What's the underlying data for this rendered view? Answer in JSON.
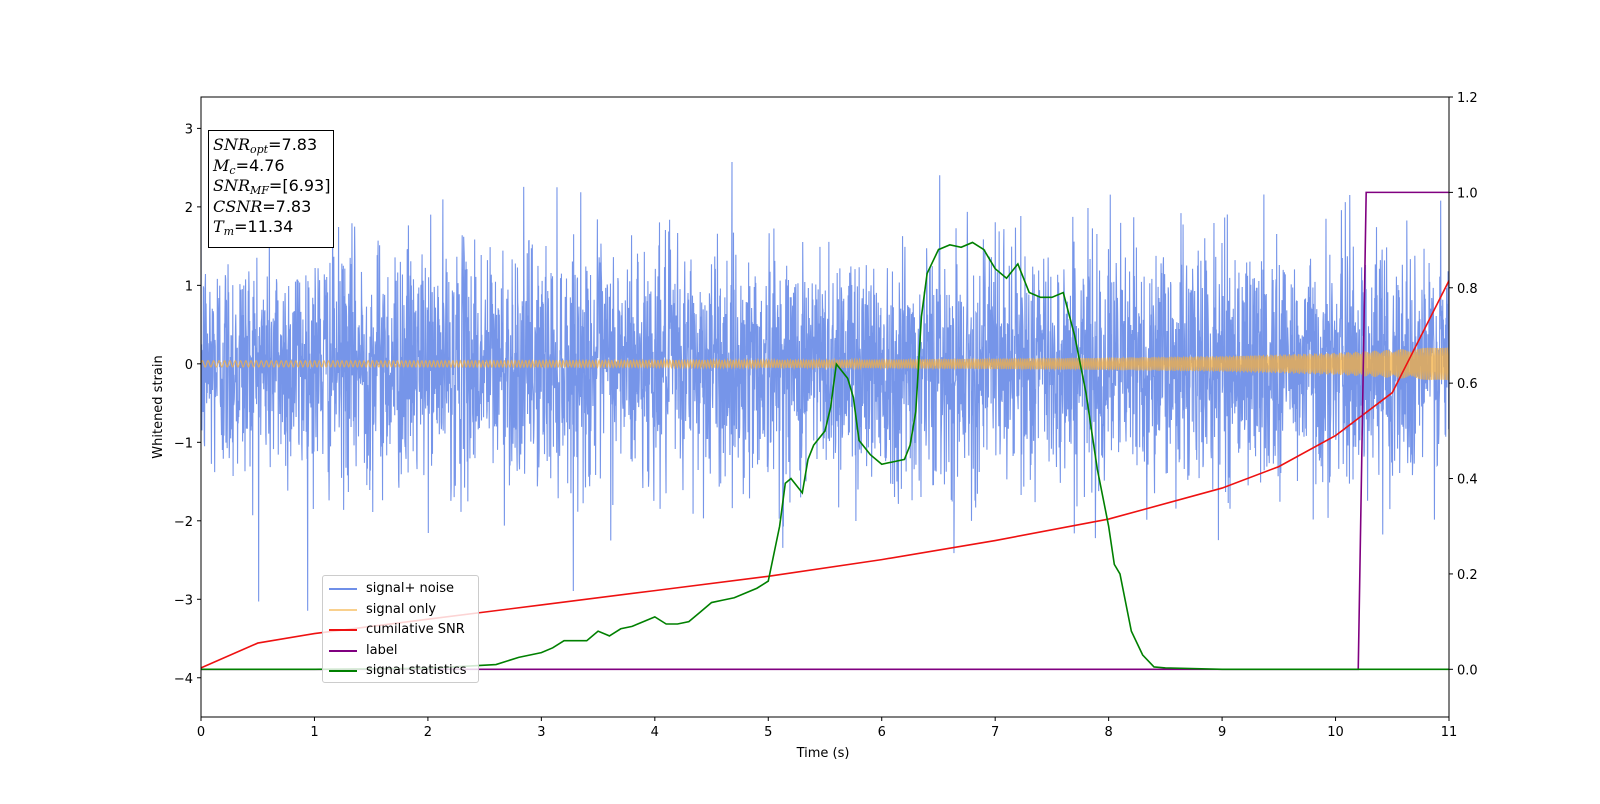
{
  "chart_data": {
    "type": "line",
    "xlabel": "Time (s)",
    "ylabel": "Whitened strain",
    "xlim": [
      0,
      11
    ],
    "ylim": [
      -4.5,
      3.4
    ],
    "y2lim": [
      -0.1,
      1.2
    ],
    "xticks": [
      "0",
      "1",
      "2",
      "3",
      "4",
      "5",
      "6",
      "7",
      "8",
      "9",
      "10",
      "11"
    ],
    "yticks": [
      "−4",
      "−3",
      "−2",
      "−1",
      "0",
      "1",
      "2",
      "3"
    ],
    "y2ticks": [
      "0.0",
      "0.2",
      "0.4",
      "0.6",
      "0.8",
      "1.0",
      "1.2"
    ],
    "grid": false,
    "legend_position": "lower-left",
    "annotations": [
      {
        "var": "SNR",
        "sub": "opt",
        "value": "=7.83"
      },
      {
        "var": "M",
        "sub": "c",
        "value": "=4.76"
      },
      {
        "var": "SNR",
        "sub": "MF",
        "value": "=[6.93]"
      },
      {
        "var": "CSNR",
        "sub": "",
        "value": "=7.83"
      },
      {
        "var": "T",
        "sub": "m",
        "value": "=11.34"
      }
    ],
    "series": [
      {
        "name": "signal+ noise",
        "color": "#6f8fe8",
        "axis": "left",
        "description_values": {
          "noise_sigma": 0.75,
          "duration": 11
        }
      },
      {
        "name": "signal only",
        "color": "#f5b041",
        "axis": "left",
        "envelope": {
          "x": [
            0,
            2,
            4,
            6,
            8,
            9,
            10,
            10.5,
            11
          ],
          "amp": [
            0.04,
            0.04,
            0.045,
            0.055,
            0.08,
            0.1,
            0.14,
            0.18,
            0.22
          ]
        }
      },
      {
        "name": "cumilative SNR",
        "color": "#ee1111",
        "axis": "right",
        "x": [
          0,
          0.5,
          1,
          2,
          3,
          4,
          5,
          6,
          7,
          8,
          9,
          9.5,
          10,
          10.5,
          11
        ],
        "values": [
          0.003,
          0.055,
          0.075,
          0.105,
          0.135,
          0.165,
          0.195,
          0.23,
          0.27,
          0.315,
          0.38,
          0.425,
          0.49,
          0.58,
          0.815
        ]
      },
      {
        "name": "label",
        "color": "#800080",
        "axis": "right",
        "x": [
          0,
          10.2,
          10.27,
          11
        ],
        "values": [
          0.0,
          0.0,
          1.0,
          1.0
        ]
      },
      {
        "name": "signal statistics",
        "color": "#008000",
        "axis": "right",
        "x": [
          0,
          1,
          2,
          2.6,
          2.8,
          3.0,
          3.1,
          3.2,
          3.4,
          3.5,
          3.6,
          3.7,
          3.8,
          3.9,
          4.0,
          4.1,
          4.2,
          4.3,
          4.4,
          4.5,
          4.6,
          4.7,
          4.8,
          4.9,
          5.0,
          5.1,
          5.15,
          5.2,
          5.3,
          5.35,
          5.4,
          5.5,
          5.55,
          5.6,
          5.7,
          5.75,
          5.8,
          5.9,
          6.0,
          6.1,
          6.2,
          6.25,
          6.3,
          6.35,
          6.4,
          6.5,
          6.6,
          6.7,
          6.8,
          6.9,
          7.0,
          7.1,
          7.2,
          7.3,
          7.4,
          7.5,
          7.6,
          7.7,
          7.8,
          7.9,
          8.0,
          8.05,
          8.1,
          8.2,
          8.3,
          8.4,
          8.5,
          9.0,
          10.0,
          11.0
        ],
        "values": [
          0.0,
          0.0,
          0.002,
          0.01,
          0.025,
          0.035,
          0.045,
          0.06,
          0.06,
          0.08,
          0.07,
          0.085,
          0.09,
          0.1,
          0.11,
          0.095,
          0.095,
          0.1,
          0.12,
          0.14,
          0.145,
          0.15,
          0.16,
          0.17,
          0.185,
          0.3,
          0.39,
          0.4,
          0.37,
          0.44,
          0.47,
          0.5,
          0.55,
          0.64,
          0.61,
          0.57,
          0.48,
          0.45,
          0.43,
          0.435,
          0.44,
          0.47,
          0.54,
          0.74,
          0.83,
          0.88,
          0.89,
          0.885,
          0.895,
          0.88,
          0.84,
          0.82,
          0.85,
          0.79,
          0.78,
          0.78,
          0.79,
          0.7,
          0.58,
          0.42,
          0.3,
          0.22,
          0.2,
          0.08,
          0.03,
          0.005,
          0.003,
          0.0,
          0.0,
          0.0
        ]
      }
    ]
  }
}
